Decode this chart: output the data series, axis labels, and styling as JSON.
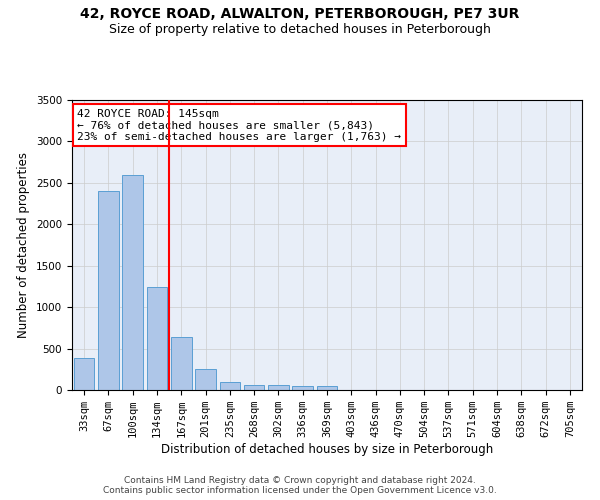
{
  "title1": "42, ROYCE ROAD, ALWALTON, PETERBOROUGH, PE7 3UR",
  "title2": "Size of property relative to detached houses in Peterborough",
  "xlabel": "Distribution of detached houses by size in Peterborough",
  "ylabel": "Number of detached properties",
  "categories": [
    "33sqm",
    "67sqm",
    "100sqm",
    "134sqm",
    "167sqm",
    "201sqm",
    "235sqm",
    "268sqm",
    "302sqm",
    "336sqm",
    "369sqm",
    "403sqm",
    "436sqm",
    "470sqm",
    "504sqm",
    "537sqm",
    "571sqm",
    "604sqm",
    "638sqm",
    "672sqm",
    "705sqm"
  ],
  "values": [
    390,
    2400,
    2600,
    1240,
    640,
    255,
    100,
    60,
    60,
    45,
    45,
    0,
    0,
    0,
    0,
    0,
    0,
    0,
    0,
    0,
    0
  ],
  "bar_color": "#aec6e8",
  "bar_edge_color": "#5a9fd4",
  "vline_x": 3.5,
  "vline_color": "red",
  "annotation_text": "42 ROYCE ROAD: 145sqm\n← 76% of detached houses are smaller (5,843)\n23% of semi-detached houses are larger (1,763) →",
  "annotation_box_color": "white",
  "annotation_box_edge_color": "red",
  "ylim": [
    0,
    3500
  ],
  "yticks": [
    0,
    500,
    1000,
    1500,
    2000,
    2500,
    3000,
    3500
  ],
  "grid_color": "#cccccc",
  "bg_color": "#e8eef8",
  "footer": "Contains HM Land Registry data © Crown copyright and database right 2024.\nContains public sector information licensed under the Open Government Licence v3.0.",
  "title1_fontsize": 10,
  "title2_fontsize": 9,
  "xlabel_fontsize": 8.5,
  "ylabel_fontsize": 8.5,
  "tick_fontsize": 7.5,
  "annotation_fontsize": 8,
  "footer_fontsize": 6.5
}
